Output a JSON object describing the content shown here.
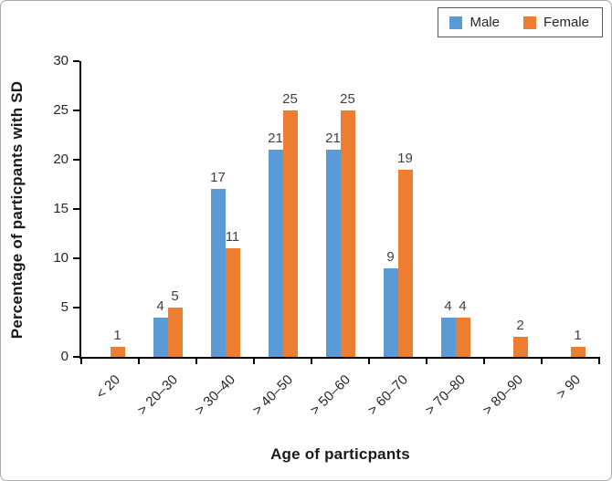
{
  "legend": {
    "items": [
      {
        "label": "Male",
        "color": "#5B9BD5"
      },
      {
        "label": "Female",
        "color": "#ED7D31"
      }
    ]
  },
  "chart_data": {
    "type": "bar",
    "title": "",
    "categories": [
      "< 20",
      "> 20–30",
      "> 30–40",
      "> 40–50",
      "> 50–60",
      "> 60–70",
      "> 70–80",
      "> 80–90",
      "> 90"
    ],
    "series": [
      {
        "name": "Male",
        "color": "#5B9BD5",
        "values": [
          0,
          4,
          17,
          21,
          21,
          9,
          4,
          0,
          0
        ]
      },
      {
        "name": "Female",
        "color": "#ED7D31",
        "values": [
          1,
          5,
          11,
          25,
          25,
          19,
          4,
          2,
          1
        ]
      }
    ],
    "xlabel": "Age of particpants",
    "ylabel": "Percentage of particpants with SD",
    "ylim": [
      0,
      30
    ],
    "yticks": [
      0,
      5,
      10,
      15,
      20,
      25,
      30
    ],
    "data_labels": true,
    "grid": false,
    "legend_position": "top-right"
  },
  "colors": {
    "axis": "#000000",
    "value_label_text": "#404040",
    "tick_label_text": "#262626",
    "frame_border": "#a8a8a8"
  }
}
